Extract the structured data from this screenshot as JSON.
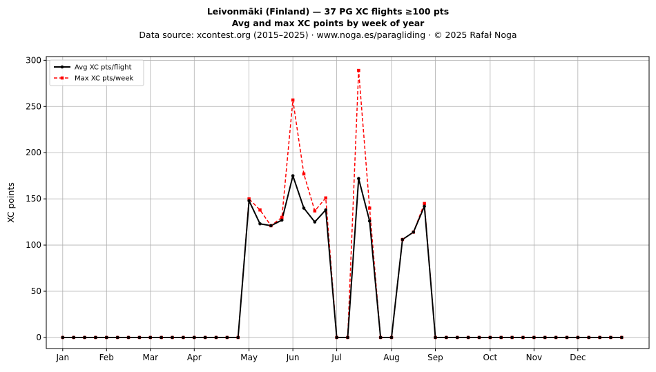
{
  "chart_data": {
    "type": "line",
    "title": "Leivonmäki (Finland)  —  37 PG XC flights ≥100 pts",
    "subtitle": "Avg and max XC points by week of year",
    "source": "Data source: xcontest.org (2015–2025)  ·  www.noga.es/paragliding  ·  © 2025 Rafał Noga",
    "xlabel": "",
    "ylabel": "XC points",
    "ylim": [
      -12,
      304
    ],
    "xlim": [
      -1.5,
      53.5
    ],
    "yticks": [
      0,
      50,
      100,
      150,
      200,
      250,
      300
    ],
    "x_ticks": [
      {
        "label": "Jan",
        "week": 0
      },
      {
        "label": "Feb",
        "week": 4
      },
      {
        "label": "Mar",
        "week": 8
      },
      {
        "label": "Apr",
        "week": 12
      },
      {
        "label": "May",
        "week": 17
      },
      {
        "label": "Jun",
        "week": 21
      },
      {
        "label": "Jul",
        "week": 25
      },
      {
        "label": "Aug",
        "week": 30
      },
      {
        "label": "Sep",
        "week": 34
      },
      {
        "label": "Oct",
        "week": 39
      },
      {
        "label": "Nov",
        "week": 43
      },
      {
        "label": "Dec",
        "week": 47
      }
    ],
    "grid": true,
    "legend": "top-left",
    "weeks": [
      0,
      1,
      2,
      3,
      4,
      5,
      6,
      7,
      8,
      9,
      10,
      11,
      12,
      13,
      14,
      15,
      16,
      17,
      18,
      19,
      20,
      21,
      22,
      23,
      24,
      25,
      26,
      27,
      28,
      29,
      30,
      31,
      32,
      33,
      34,
      35,
      36,
      37,
      38,
      39,
      40,
      41,
      42,
      43,
      44,
      45,
      46,
      47,
      48,
      49,
      50,
      51
    ],
    "series": [
      {
        "name": "Avg XC pts/flight",
        "color": "#000000",
        "style": "solid",
        "marker": "circle",
        "values": [
          0,
          0,
          0,
          0,
          0,
          0,
          0,
          0,
          0,
          0,
          0,
          0,
          0,
          0,
          0,
          0,
          0,
          148,
          123,
          121,
          127,
          175,
          140,
          125,
          138,
          0,
          0,
          172,
          126,
          0,
          0,
          106,
          114,
          142,
          0,
          0,
          0,
          0,
          0,
          0,
          0,
          0,
          0,
          0,
          0,
          0,
          0,
          0,
          0,
          0,
          0,
          0
        ]
      },
      {
        "name": "Max XC pts/week",
        "color": "#ff0000",
        "style": "dashed",
        "marker": "square",
        "values": [
          0,
          0,
          0,
          0,
          0,
          0,
          0,
          0,
          0,
          0,
          0,
          0,
          0,
          0,
          0,
          0,
          0,
          150,
          138,
          121,
          130,
          257,
          177,
          137,
          151,
          0,
          0,
          289,
          140,
          0,
          0,
          106,
          114,
          145,
          0,
          0,
          0,
          0,
          0,
          0,
          0,
          0,
          0,
          0,
          0,
          0,
          0,
          0,
          0,
          0,
          0,
          0
        ]
      }
    ]
  }
}
